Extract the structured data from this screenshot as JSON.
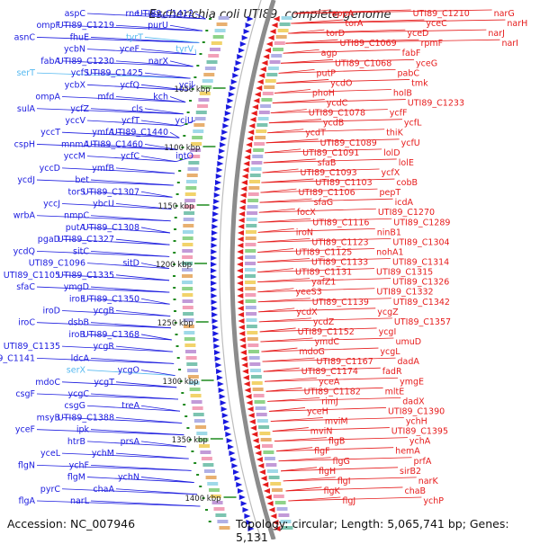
{
  "title": "Escherichia coli UTI89, complete genome",
  "footer": {
    "accession": "Accession: NC_007946",
    "topology": "Topology: circular; Length: 5,065,741 bp; Genes: 5,131"
  },
  "colors": {
    "forward": "#1a1adf",
    "reverse": "#e61c1c",
    "rna": "#55b9f0",
    "backbone": "#8c8c8c",
    "tick": "#1e8a1e"
  },
  "scale_labels": [
    "1050 kbp",
    "1100 kbp",
    "1150 kbp",
    "1200 kbp",
    "1250 kbp",
    "1300 kbp",
    "1350 kbp",
    "1400 kbp"
  ],
  "left_genes": [
    "aspC",
    "ompF",
    "asnC",
    "ycbN",
    "fabA",
    "serT",
    "ycbX",
    "ompA",
    "sulA",
    "yccV",
    "yccT",
    "cspH",
    "yccM",
    "yccD",
    "ycdJ",
    "torS",
    "yccJ",
    "wrbA",
    "putA",
    "pgaD",
    "ycdQ",
    "UTI89_C1096",
    "UTI89_C1105",
    "sfaC",
    "iroE",
    "iroD",
    "iroC",
    "iroB",
    "UTI89_C1135",
    "UTI89_C1141",
    "serX",
    "mdoC",
    "csgF",
    "csgG",
    "msyB",
    "yceF",
    "htrB",
    "yceL",
    "flgN",
    "flgM",
    "pyrC",
    "flgA",
    "rne",
    "UTI89_C1219",
    "fhuE",
    "yceF",
    "UTI89_C1230",
    "ycfS",
    "ycfQ",
    "mfd",
    "ycfZ",
    "ycfT",
    "ymfA",
    "mnmA",
    "ycfC",
    "ymfB",
    "bet",
    "UTI89_C1307",
    "ybcU",
    "nmpC",
    "UTI89_C1308",
    "UTI89_C1327",
    "sitC",
    "sitD",
    "UTI89_C1335",
    "ymgD",
    "UTI89_C1350",
    "ycgB",
    "dsbB",
    "UTI89_C1368",
    "ycgR",
    "ldcA",
    "ycgO",
    "ycgT",
    "ycgC",
    "treA",
    "UTI89_C1388",
    "ipk",
    "prsA",
    "ychM",
    "ychF",
    "ychN",
    "chaA",
    "narL",
    "UTI89_C1412",
    "purU",
    "tyrT",
    "tyrV",
    "narX",
    "UTI89_C1425",
    "ycil",
    "kch",
    "cls",
    "yciU",
    "UTI89_C1440",
    "UTI89_C1460",
    "intO"
  ],
  "right_genes": [
    "appA",
    "torA",
    "torD",
    "UTI89_C1069",
    "agp",
    "UTI89_C1068",
    "putP",
    "ycdO",
    "phoH",
    "ycdC",
    "UTI89_C1078",
    "ycdB",
    "ycdT",
    "UTI89_C1089",
    "UTI89_C1091",
    "sfaB",
    "UTI89_C1093",
    "UTI89_C1103",
    "UTI89_C1106",
    "sfaG",
    "focX",
    "UTI89_C1116",
    "iroN",
    "UTI89_C1123",
    "UTI89_C1125",
    "UTI89_C1133",
    "UTI89_C1131",
    "yafZ1",
    "yeeS3",
    "UTI89_C1139",
    "ycdX",
    "ycdZ",
    "UTI89_C1152",
    "ymdC",
    "mdoG",
    "UTI89_C1167",
    "UTI89_C1174",
    "yceA",
    "UTI89_C1182",
    "rimJ",
    "yceH",
    "mviM",
    "mviN",
    "flgB",
    "flgF",
    "flgG",
    "flgH",
    "flgI",
    "flgK",
    "flgJ",
    "UTI89_C1210",
    "yceC",
    "yceD",
    "rpmF",
    "fabF",
    "yceG",
    "pabC",
    "tmk",
    "holB",
    "UTI89_C1233",
    "ycfF",
    "ycfL",
    "thiK",
    "ycfU",
    "lolD",
    "lolE",
    "ycfX",
    "cobB",
    "pepT",
    "icdA",
    "UTI89_C1270",
    "UTI89_C1289",
    "ninB1",
    "UTI89_C1304",
    "nohA1",
    "UTI89_C1314",
    "UTI89_C1315",
    "UTI89_C1326",
    "UTI89_C1332",
    "UTI89_C1342",
    "ycgZ",
    "UTI89_C1357",
    "ycgI",
    "umuD",
    "ycgL",
    "dadA",
    "fadR",
    "ymgE",
    "mltE",
    "dadX",
    "UTI89_C1390",
    "ychH",
    "UTI89_C1395",
    "ychA",
    "hemA",
    "prfA",
    "sirB2",
    "narK",
    "chaB",
    "ychP",
    "narG",
    "narH",
    "narJ",
    "narI"
  ]
}
